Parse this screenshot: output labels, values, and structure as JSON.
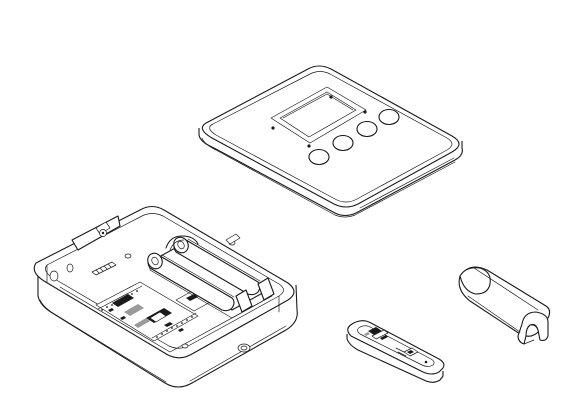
{
  "figure": {
    "kind": "exploded isometric line drawing",
    "parts": [
      {
        "id": "front-cover-with-display-and-buttons",
        "button_count": 4
      },
      {
        "id": "base-enclosure-with-electronics-and-battery-holder",
        "battery_count": 2
      },
      {
        "id": "sensor-probe-board"
      },
      {
        "id": "cable-cover-channel"
      }
    ]
  },
  "colors": {
    "line": "#1a1a1a",
    "fill": "#ffffff",
    "board_detail": "#9a9a9a"
  }
}
